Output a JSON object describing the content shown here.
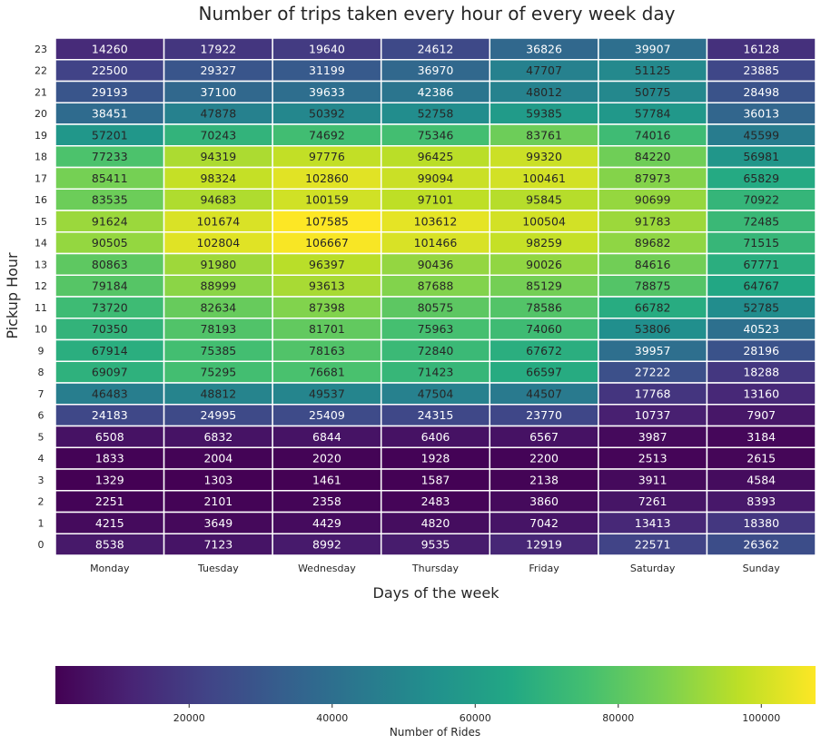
{
  "chart_data": {
    "type": "heatmap",
    "title": "Number of trips taken every hour of every week day",
    "xlabel": "Days of the week",
    "ylabel": "Pickup Hour",
    "days": [
      "Monday",
      "Tuesday",
      "Wednesday",
      "Thursday",
      "Friday",
      "Saturday",
      "Sunday"
    ],
    "hours": [
      "23",
      "22",
      "21",
      "20",
      "19",
      "18",
      "17",
      "16",
      "15",
      "14",
      "13",
      "12",
      "11",
      "10",
      "9",
      "8",
      "7",
      "6",
      "5",
      "4",
      "3",
      "2",
      "1",
      "0"
    ],
    "values": [
      [
        14260,
        17922,
        19640,
        24612,
        36826,
        39907,
        16128
      ],
      [
        22500,
        29327,
        31199,
        36970,
        47707,
        51125,
        23885
      ],
      [
        29193,
        37100,
        39633,
        42386,
        48012,
        50775,
        28498
      ],
      [
        38451,
        47878,
        50392,
        52758,
        59385,
        57784,
        36013
      ],
      [
        57201,
        70243,
        74692,
        75346,
        83761,
        74016,
        45599
      ],
      [
        77233,
        94319,
        97776,
        96425,
        99320,
        84220,
        56981
      ],
      [
        85411,
        98324,
        102860,
        99094,
        100461,
        87973,
        65829
      ],
      [
        83535,
        94683,
        100159,
        97101,
        95845,
        90699,
        70922
      ],
      [
        91624,
        101674,
        107585,
        103612,
        100504,
        91783,
        72485
      ],
      [
        90505,
        102804,
        106667,
        101466,
        98259,
        89682,
        71515
      ],
      [
        80863,
        91980,
        96397,
        90436,
        90026,
        84616,
        67771
      ],
      [
        79184,
        88999,
        93613,
        87688,
        85129,
        78875,
        64767
      ],
      [
        73720,
        82634,
        87398,
        80575,
        78586,
        66782,
        52785
      ],
      [
        70350,
        78193,
        81701,
        75963,
        74060,
        53806,
        40523
      ],
      [
        67914,
        75385,
        78163,
        72840,
        67672,
        39957,
        28196
      ],
      [
        69097,
        75295,
        76681,
        71423,
        66597,
        27222,
        18288
      ],
      [
        46483,
        48812,
        49537,
        47504,
        44507,
        17768,
        13160
      ],
      [
        24183,
        24995,
        25409,
        24315,
        23770,
        10737,
        7907
      ],
      [
        6508,
        6832,
        6844,
        6406,
        6567,
        3987,
        3184
      ],
      [
        1833,
        2004,
        2020,
        1928,
        2200,
        2513,
        2615
      ],
      [
        1329,
        1303,
        1461,
        1587,
        2138,
        3911,
        4584
      ],
      [
        2251,
        2101,
        2358,
        2483,
        3860,
        7261,
        8393
      ],
      [
        4215,
        3649,
        4429,
        4820,
        7042,
        13413,
        18380
      ],
      [
        8538,
        7123,
        8992,
        9535,
        12919,
        22571,
        26362
      ]
    ],
    "colorscale": "viridis",
    "color_range": [
      1303,
      107585
    ],
    "colorbar": {
      "label": "Number of Rides",
      "ticks": [
        20000,
        40000,
        60000,
        80000,
        100000
      ],
      "tick_labels": [
        "20000",
        "40000",
        "60000",
        "80000",
        "100000"
      ],
      "orientation": "horizontal"
    },
    "annotations": "cell values shown",
    "grid": false,
    "cell_border_color": "#ffffff"
  }
}
